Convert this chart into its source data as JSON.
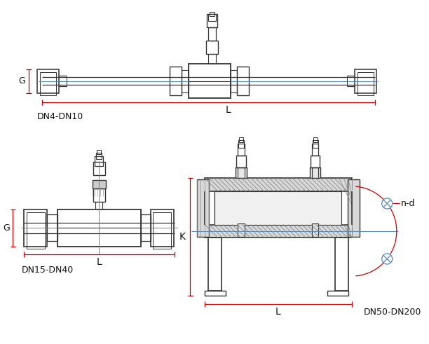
{
  "bg_color": "#ffffff",
  "line_color": "#333333",
  "red_color": "#cc0000",
  "blue_color": "#5588bb",
  "label_color": "#111111",
  "fig_width": 6.12,
  "fig_height": 4.91,
  "labels": {
    "dn4_dn10": "DN4-DN10",
    "dn15_dn40": "DN15-DN40",
    "dn50_dn200": "DN50-DN200",
    "L": "L",
    "G": "G",
    "K": "K",
    "nd": "n-d"
  }
}
